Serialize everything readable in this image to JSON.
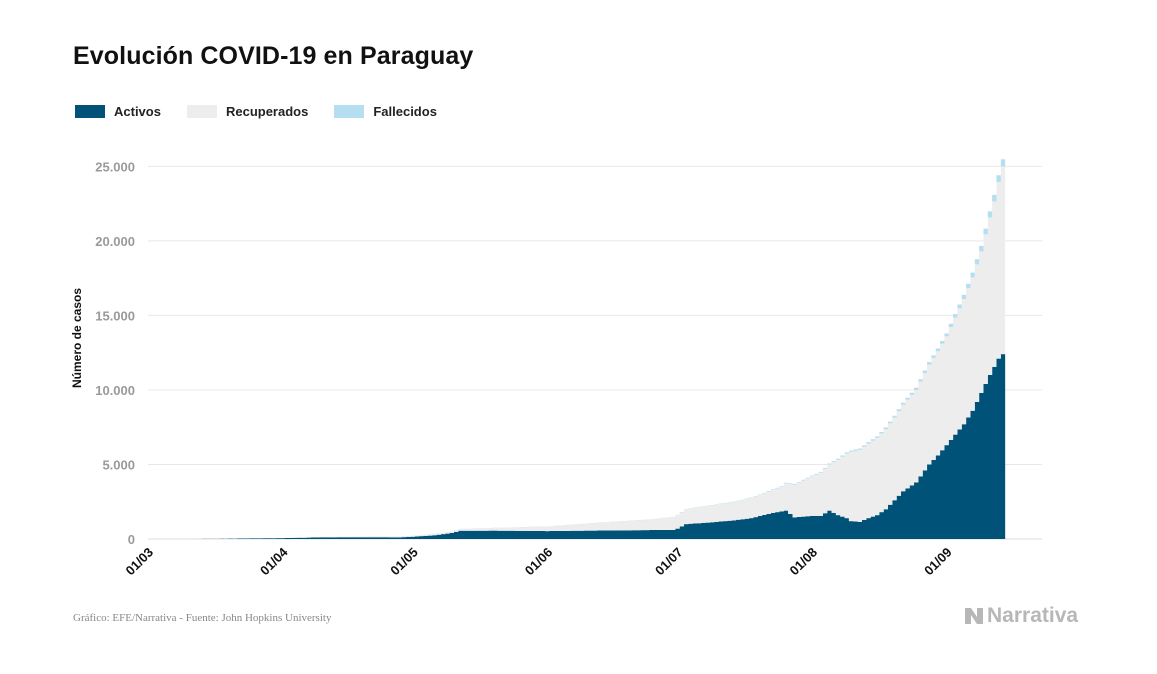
{
  "title": "Evolución COVID-19 en Paraguay",
  "footer": "Gráfico: EFE/Narrativa - Fuente: John Hopkins University",
  "logo_text": "Narrativa",
  "colors": {
    "activos": "#005279",
    "recuperados": "#ededed",
    "fallecidos": "#b5def0",
    "grid": "#e8e8e8",
    "tick": "#9a9a9a"
  },
  "chart_data": {
    "type": "area",
    "stacked": true,
    "step": true,
    "ylabel": "Número de casos",
    "ylim": [
      0,
      26500
    ],
    "yticks": [
      {
        "value": 0,
        "label": "0"
      },
      {
        "value": 5000,
        "label": "5.000"
      },
      {
        "value": 10000,
        "label": "10.000"
      },
      {
        "value": 15000,
        "label": "15.000"
      },
      {
        "value": 20000,
        "label": "20.000"
      },
      {
        "value": 25000,
        "label": "25.000"
      }
    ],
    "xticks": [
      {
        "date": "2020-03-01",
        "label": "01/03"
      },
      {
        "date": "2020-04-01",
        "label": "01/04"
      },
      {
        "date": "2020-05-01",
        "label": "01/05"
      },
      {
        "date": "2020-06-01",
        "label": "01/06"
      },
      {
        "date": "2020-07-01",
        "label": "01/07"
      },
      {
        "date": "2020-08-01",
        "label": "01/08"
      },
      {
        "date": "2020-09-01",
        "label": "01/09"
      }
    ],
    "xrange": [
      "2020-03-01",
      "2020-09-14"
    ],
    "legend_position": "top-left",
    "grid": true,
    "series": [
      {
        "name": "Activos",
        "points": [
          [
            "2020-03-01",
            0
          ],
          [
            "2020-03-07",
            0
          ],
          [
            "2020-03-15",
            5
          ],
          [
            "2020-03-25",
            40
          ],
          [
            "2020-04-01",
            60
          ],
          [
            "2020-04-10",
            110
          ],
          [
            "2020-04-20",
            120
          ],
          [
            "2020-04-28",
            110
          ],
          [
            "2020-05-01",
            150
          ],
          [
            "2020-05-06",
            250
          ],
          [
            "2020-05-10",
            400
          ],
          [
            "2020-05-12",
            550
          ],
          [
            "2020-05-20",
            560
          ],
          [
            "2020-05-28",
            540
          ],
          [
            "2020-06-01",
            530
          ],
          [
            "2020-06-10",
            560
          ],
          [
            "2020-06-20",
            580
          ],
          [
            "2020-06-25",
            600
          ],
          [
            "2020-06-30",
            600
          ],
          [
            "2020-07-01",
            700
          ],
          [
            "2020-07-03",
            1000
          ],
          [
            "2020-07-08",
            1100
          ],
          [
            "2020-07-14",
            1250
          ],
          [
            "2020-07-18",
            1400
          ],
          [
            "2020-07-23",
            1750
          ],
          [
            "2020-07-26",
            1900
          ],
          [
            "2020-07-28",
            1450
          ],
          [
            "2020-08-01",
            1550
          ],
          [
            "2020-08-03",
            1550
          ],
          [
            "2020-08-05",
            1900
          ],
          [
            "2020-08-07",
            1600
          ],
          [
            "2020-08-09",
            1400
          ],
          [
            "2020-08-10",
            1200
          ],
          [
            "2020-08-12",
            1150
          ],
          [
            "2020-08-14",
            1400
          ],
          [
            "2020-08-16",
            1600
          ],
          [
            "2020-08-18",
            2000
          ],
          [
            "2020-08-20",
            2600
          ],
          [
            "2020-08-22",
            3200
          ],
          [
            "2020-08-25",
            3800
          ],
          [
            "2020-08-28",
            5000
          ],
          [
            "2020-08-30",
            5600
          ],
          [
            "2020-09-01",
            6300
          ],
          [
            "2020-09-03",
            7000
          ],
          [
            "2020-09-05",
            7700
          ],
          [
            "2020-09-07",
            8600
          ],
          [
            "2020-09-09",
            9800
          ],
          [
            "2020-09-11",
            11000
          ],
          [
            "2020-09-13",
            12100
          ],
          [
            "2020-09-14",
            12400
          ]
        ]
      },
      {
        "name": "Recuperados",
        "points": [
          [
            "2020-03-01",
            0
          ],
          [
            "2020-03-15",
            0
          ],
          [
            "2020-04-01",
            5
          ],
          [
            "2020-04-15",
            20
          ],
          [
            "2020-05-01",
            60
          ],
          [
            "2020-05-10",
            100
          ],
          [
            "2020-05-20",
            180
          ],
          [
            "2020-06-01",
            300
          ],
          [
            "2020-06-15",
            550
          ],
          [
            "2020-06-25",
            700
          ],
          [
            "2020-07-01",
            900
          ],
          [
            "2020-07-05",
            1050
          ],
          [
            "2020-07-10",
            1150
          ],
          [
            "2020-07-15",
            1250
          ],
          [
            "2020-07-20",
            1400
          ],
          [
            "2020-07-25",
            1650
          ],
          [
            "2020-07-28",
            2200
          ],
          [
            "2020-08-01",
            2650
          ],
          [
            "2020-08-05",
            3100
          ],
          [
            "2020-08-10",
            4650
          ],
          [
            "2020-08-15",
            5100
          ],
          [
            "2020-08-20",
            5550
          ],
          [
            "2020-08-25",
            6200
          ],
          [
            "2020-08-28",
            6700
          ],
          [
            "2020-09-01",
            7300
          ],
          [
            "2020-09-05",
            8400
          ],
          [
            "2020-09-09",
            9500
          ],
          [
            "2020-09-12",
            11100
          ],
          [
            "2020-09-14",
            12600
          ]
        ]
      },
      {
        "name": "Fallecidos",
        "points": [
          [
            "2020-03-01",
            0
          ],
          [
            "2020-04-01",
            5
          ],
          [
            "2020-05-01",
            10
          ],
          [
            "2020-06-01",
            12
          ],
          [
            "2020-07-01",
            20
          ],
          [
            "2020-07-15",
            30
          ],
          [
            "2020-08-01",
            50
          ],
          [
            "2020-08-15",
            90
          ],
          [
            "2020-09-01",
            190
          ],
          [
            "2020-09-14",
            480
          ]
        ]
      }
    ]
  }
}
